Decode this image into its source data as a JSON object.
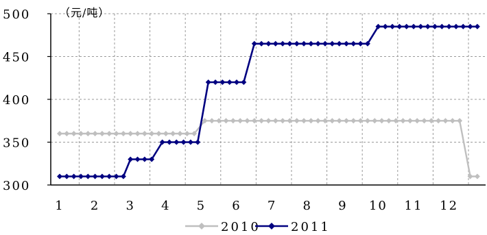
{
  "chart_data": {
    "type": "line",
    "unit_label": "（元/吨）",
    "x_ticks": [
      "1",
      "2",
      "3",
      "4",
      "5",
      "6",
      "7",
      "8",
      "9",
      "10",
      "11",
      "12"
    ],
    "y_ticks": [
      "500",
      "450",
      "400",
      "350",
      "300"
    ],
    "ylim": [
      300,
      500
    ],
    "xlim": [
      1,
      12.8
    ],
    "grid": true,
    "legend_position": "bottom",
    "series": [
      {
        "name": "2010",
        "color": "#bfbfbf",
        "marker": "diamond",
        "points": [
          [
            1.0,
            360
          ],
          [
            1.2,
            360
          ],
          [
            1.4,
            360
          ],
          [
            1.6,
            360
          ],
          [
            1.8,
            360
          ],
          [
            2.0,
            360
          ],
          [
            2.2,
            360
          ],
          [
            2.4,
            360
          ],
          [
            2.6,
            360
          ],
          [
            2.8,
            360
          ],
          [
            3.0,
            360
          ],
          [
            3.2,
            360
          ],
          [
            3.4,
            360
          ],
          [
            3.6,
            360
          ],
          [
            3.8,
            360
          ],
          [
            4.0,
            360
          ],
          [
            4.2,
            360
          ],
          [
            4.4,
            360
          ],
          [
            4.6,
            360
          ],
          [
            4.8,
            360
          ],
          [
            5.1,
            375
          ],
          [
            5.3,
            375
          ],
          [
            5.5,
            375
          ],
          [
            5.7,
            375
          ],
          [
            5.9,
            375
          ],
          [
            6.1,
            375
          ],
          [
            6.3,
            375
          ],
          [
            6.5,
            375
          ],
          [
            6.7,
            375
          ],
          [
            6.9,
            375
          ],
          [
            7.1,
            375
          ],
          [
            7.3,
            375
          ],
          [
            7.5,
            375
          ],
          [
            7.7,
            375
          ],
          [
            7.9,
            375
          ],
          [
            8.1,
            375
          ],
          [
            8.3,
            375
          ],
          [
            8.5,
            375
          ],
          [
            8.7,
            375
          ],
          [
            8.9,
            375
          ],
          [
            9.1,
            375
          ],
          [
            9.3,
            375
          ],
          [
            9.5,
            375
          ],
          [
            9.7,
            375
          ],
          [
            9.9,
            375
          ],
          [
            10.1,
            375
          ],
          [
            10.3,
            375
          ],
          [
            10.5,
            375
          ],
          [
            10.7,
            375
          ],
          [
            10.9,
            375
          ],
          [
            11.1,
            375
          ],
          [
            11.3,
            375
          ],
          [
            11.5,
            375
          ],
          [
            11.7,
            375
          ],
          [
            11.9,
            375
          ],
          [
            12.1,
            375
          ],
          [
            12.3,
            375
          ],
          [
            12.6,
            310
          ],
          [
            12.8,
            310
          ]
        ]
      },
      {
        "name": "2011",
        "color": "#000080",
        "marker": "diamond",
        "points": [
          [
            1.0,
            310
          ],
          [
            1.2,
            310
          ],
          [
            1.4,
            310
          ],
          [
            1.6,
            310
          ],
          [
            1.8,
            310
          ],
          [
            2.0,
            310
          ],
          [
            2.2,
            310
          ],
          [
            2.4,
            310
          ],
          [
            2.6,
            310
          ],
          [
            2.8,
            310
          ],
          [
            3.0,
            330
          ],
          [
            3.2,
            330
          ],
          [
            3.4,
            330
          ],
          [
            3.6,
            330
          ],
          [
            3.9,
            350
          ],
          [
            4.1,
            350
          ],
          [
            4.3,
            350
          ],
          [
            4.5,
            350
          ],
          [
            4.7,
            350
          ],
          [
            4.9,
            350
          ],
          [
            5.2,
            420
          ],
          [
            5.4,
            420
          ],
          [
            5.6,
            420
          ],
          [
            5.8,
            420
          ],
          [
            6.0,
            420
          ],
          [
            6.2,
            420
          ],
          [
            6.5,
            465
          ],
          [
            6.7,
            465
          ],
          [
            6.9,
            465
          ],
          [
            7.1,
            465
          ],
          [
            7.3,
            465
          ],
          [
            7.5,
            465
          ],
          [
            7.7,
            465
          ],
          [
            7.9,
            465
          ],
          [
            8.1,
            465
          ],
          [
            8.3,
            465
          ],
          [
            8.5,
            465
          ],
          [
            8.7,
            465
          ],
          [
            8.9,
            465
          ],
          [
            9.1,
            465
          ],
          [
            9.3,
            465
          ],
          [
            9.5,
            465
          ],
          [
            9.7,
            465
          ],
          [
            10.0,
            485
          ],
          [
            10.2,
            485
          ],
          [
            10.4,
            485
          ],
          [
            10.6,
            485
          ],
          [
            10.8,
            485
          ],
          [
            11.0,
            485
          ],
          [
            11.2,
            485
          ],
          [
            11.4,
            485
          ],
          [
            11.6,
            485
          ],
          [
            11.8,
            485
          ],
          [
            12.0,
            485
          ],
          [
            12.2,
            485
          ],
          [
            12.4,
            485
          ],
          [
            12.6,
            485
          ],
          [
            12.8,
            485
          ]
        ]
      }
    ]
  }
}
